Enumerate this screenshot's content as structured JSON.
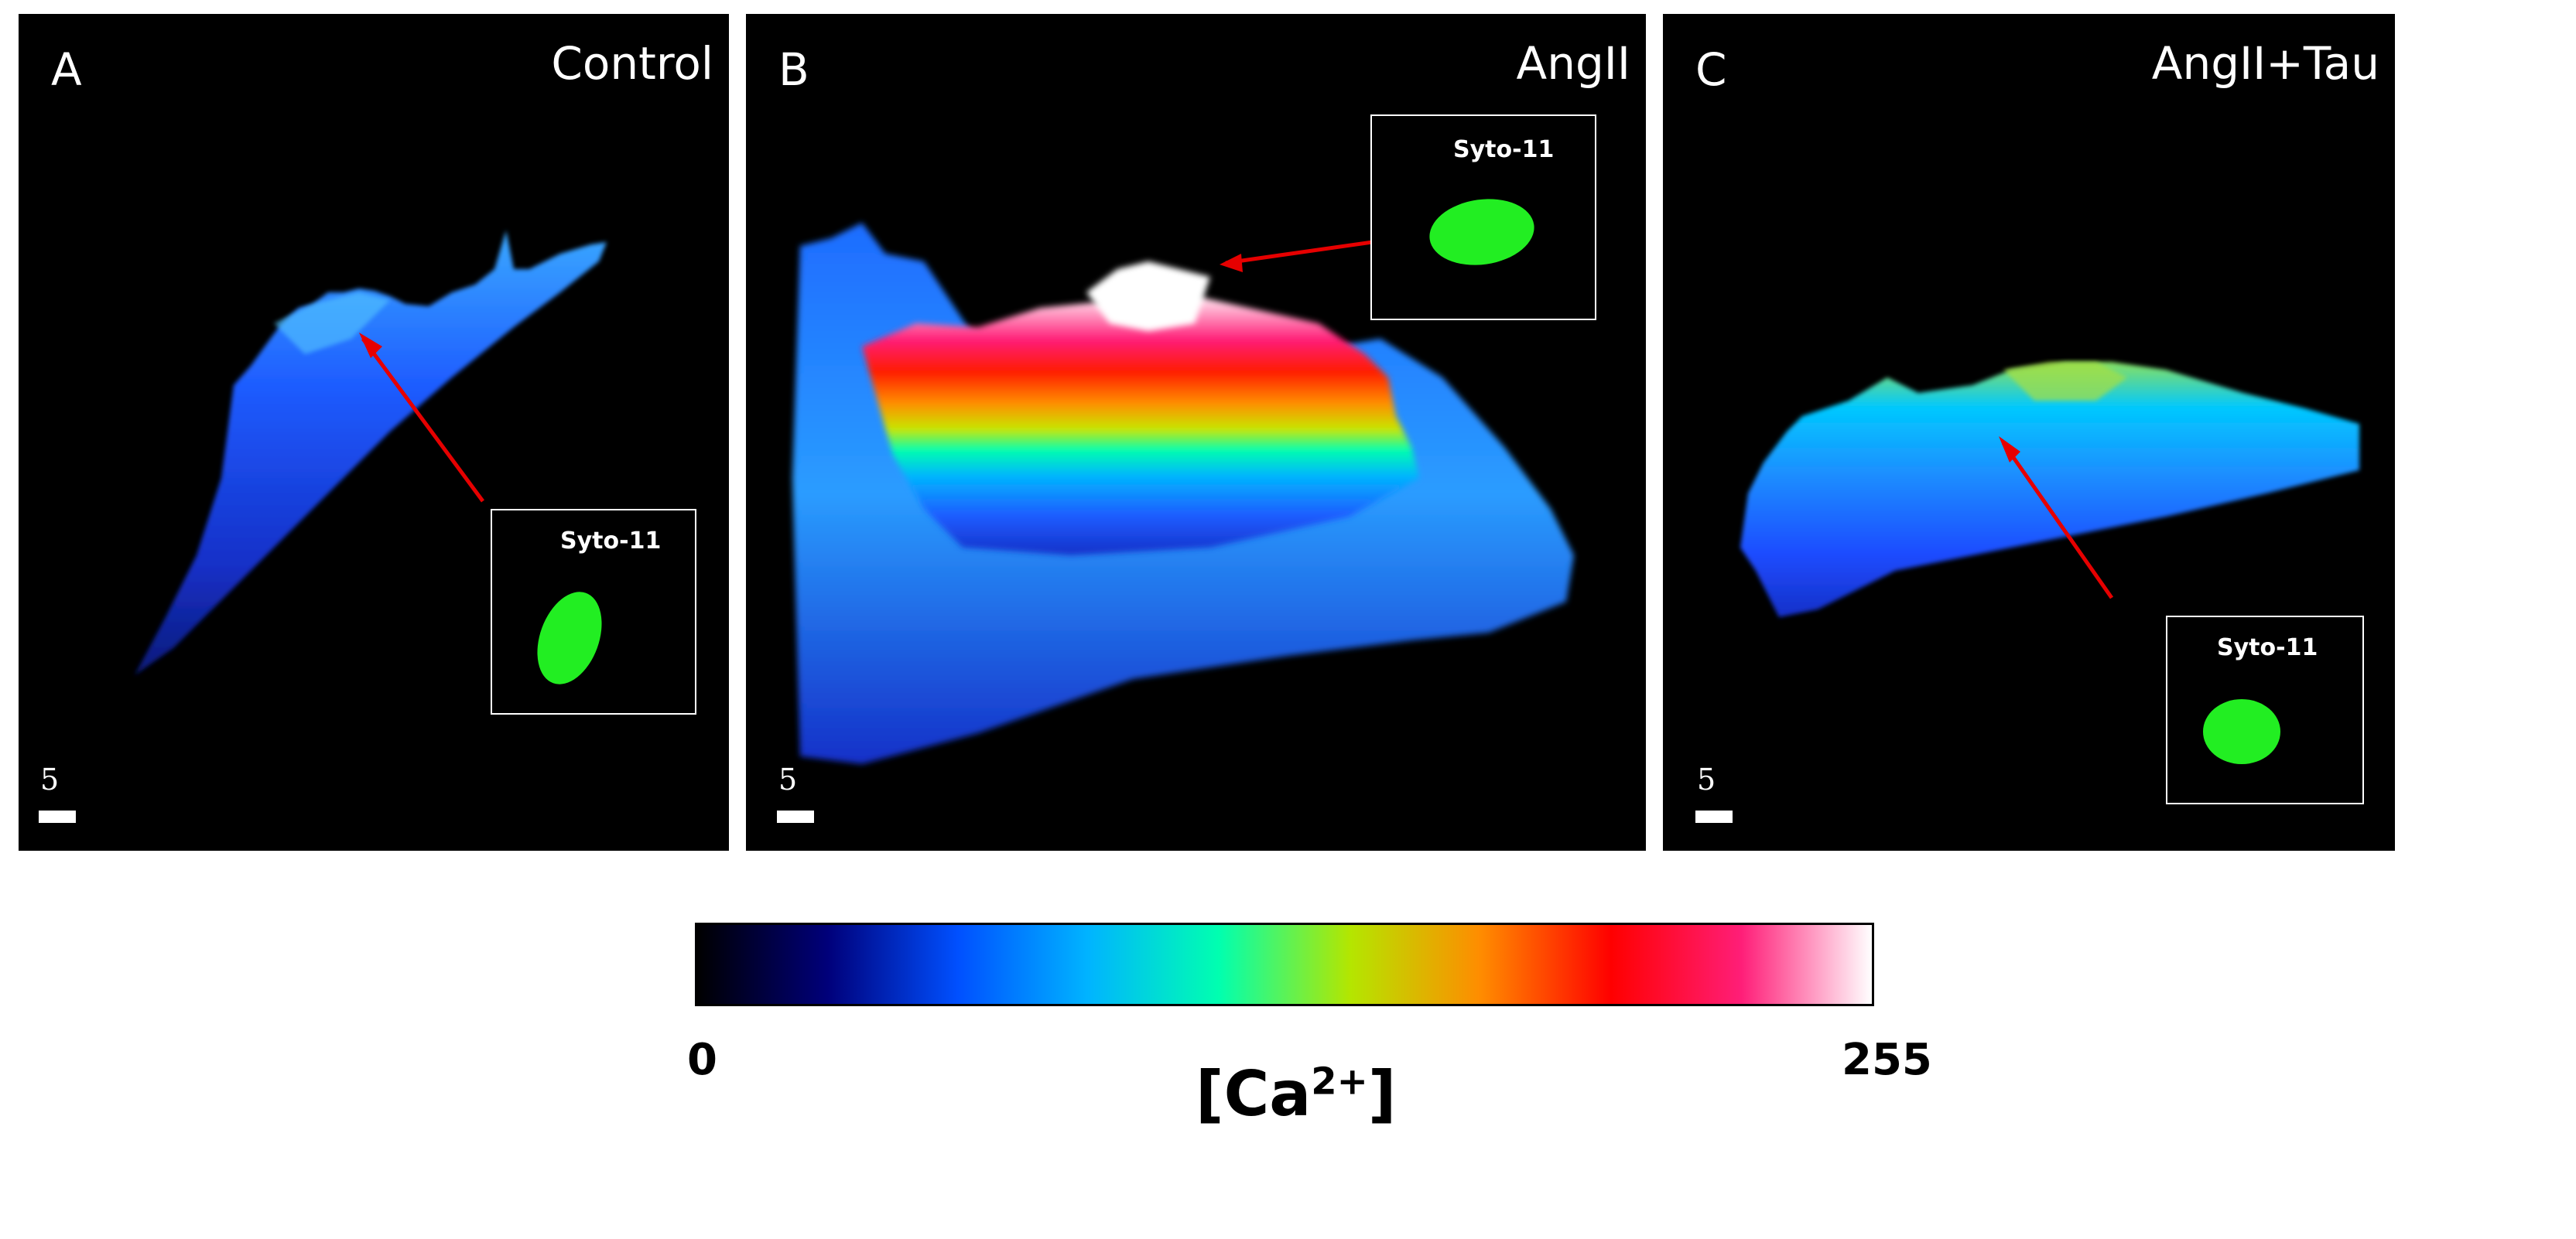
{
  "panels": [
    {
      "letter": "A",
      "title": "Control",
      "inset_label": "Syto-11",
      "scale_label": "5"
    },
    {
      "letter": "B",
      "title": "AngII",
      "inset_label": "Syto-11",
      "scale_label": "5"
    },
    {
      "letter": "C",
      "title": "AngII+Tau",
      "inset_label": "Syto-11",
      "scale_label": "5"
    }
  ],
  "colorbar": {
    "min_label": "0",
    "max_label": "255",
    "title_main": "[Ca",
    "title_sup": "2+",
    "title_end": "]",
    "colors": [
      "#000000",
      "#00007a",
      "#0050ff",
      "#00b4ff",
      "#00ffb0",
      "#b4e600",
      "#ff8c00",
      "#ff0000",
      "#ff1e78",
      "#ffffff"
    ]
  },
  "colors": {
    "arrow": "#e60000",
    "nucleus": "#22ee22"
  }
}
